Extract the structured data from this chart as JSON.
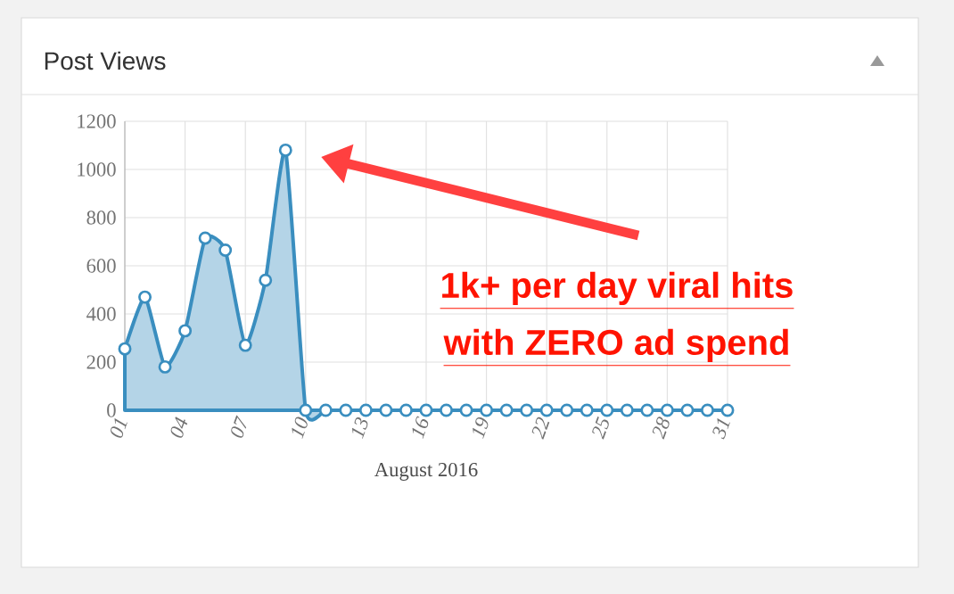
{
  "chart_data": {
    "type": "area",
    "title": "Post Views",
    "xlabel": "August 2016",
    "categories": [
      "01",
      null,
      null,
      "04",
      null,
      null,
      "07",
      null,
      null,
      "10",
      null,
      null,
      "13",
      null,
      null,
      "16",
      null,
      null,
      "19",
      null,
      null,
      "22",
      null,
      null,
      "25",
      null,
      null,
      "28",
      null,
      null,
      "31"
    ],
    "series": [
      {
        "color": "#3a8ebf",
        "values": [
          255,
          470,
          180,
          330,
          715,
          665,
          270,
          540,
          1080,
          0,
          0,
          0,
          0,
          0,
          0,
          0,
          0,
          0,
          0,
          0,
          0,
          0,
          0,
          0,
          0,
          0,
          0,
          0,
          0,
          0,
          0
        ]
      }
    ],
    "ylim": [
      0,
      1200
    ],
    "yticks": [
      0,
      200,
      400,
      600,
      800,
      1000,
      1200
    ],
    "grid": true,
    "marker": "circle",
    "annotations": [
      "1k+ per day viral hits",
      "with ZERO ad spend"
    ]
  }
}
